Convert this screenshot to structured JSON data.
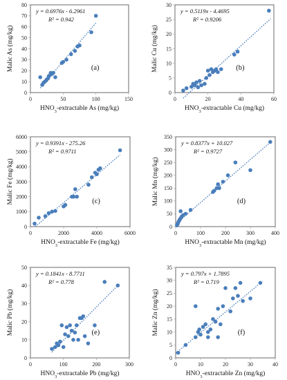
{
  "chart_data": [
    {
      "type": "scatter",
      "panel_label": "(a)",
      "xlabel": "HNO3-extractable As (mg/kg)",
      "ylabel": "Malic As (mg/kg)",
      "element": "As",
      "xlim": [
        0,
        150
      ],
      "ylim": [
        0,
        80
      ],
      "xticks": [
        0,
        50,
        100,
        150
      ],
      "yticks": [
        0,
        10,
        20,
        30,
        40,
        50,
        60,
        70,
        80
      ],
      "equation": "y = 0.6976x - 6.2961",
      "r2": "R² = 0.942",
      "trend": {
        "slope": 0.6976,
        "intercept": -6.2961,
        "x_range": [
          15,
          100
        ]
      },
      "points": [
        [
          15,
          14
        ],
        [
          18,
          7
        ],
        [
          20,
          9
        ],
        [
          22,
          10
        ],
        [
          24,
          11
        ],
        [
          25,
          12
        ],
        [
          27,
          13
        ],
        [
          28,
          15
        ],
        [
          30,
          16
        ],
        [
          31,
          18
        ],
        [
          33,
          17
        ],
        [
          35,
          18
        ],
        [
          38,
          14
        ],
        [
          48,
          27
        ],
        [
          50,
          28
        ],
        [
          55,
          30
        ],
        [
          62,
          35
        ],
        [
          68,
          38
        ],
        [
          72,
          42
        ],
        [
          75,
          43
        ],
        [
          93,
          55
        ],
        [
          100,
          70
        ]
      ]
    },
    {
      "type": "scatter",
      "panel_label": "(b)",
      "xlabel": "HNO3-extractable Cu (mg/kg)",
      "ylabel": "Malic Cu (mg/kg)",
      "element": "Cu",
      "xlim": [
        0,
        60
      ],
      "ylim": [
        0,
        30
      ],
      "xticks": [
        0,
        20,
        40,
        60
      ],
      "yticks": [
        0,
        5,
        10,
        15,
        20,
        25,
        30
      ],
      "equation": "y = 0.5119x - 4.4695",
      "r2": "R² = 0.9206",
      "trend": {
        "slope": 0.5119,
        "intercept": -4.4695,
        "x_range": [
          5,
          58
        ]
      },
      "points": [
        [
          5,
          0.7
        ],
        [
          7,
          1.5
        ],
        [
          10,
          2.0
        ],
        [
          11,
          3.0
        ],
        [
          12,
          2.5
        ],
        [
          13,
          3.5
        ],
        [
          14,
          1.8
        ],
        [
          15,
          4.0
        ],
        [
          16,
          2.5
        ],
        [
          18,
          3.0
        ],
        [
          19,
          5.0
        ],
        [
          20,
          7.5
        ],
        [
          21,
          6.0
        ],
        [
          22,
          8.0
        ],
        [
          23,
          7.0
        ],
        [
          24,
          7.5
        ],
        [
          25,
          8.0
        ],
        [
          26,
          7.0
        ],
        [
          28,
          8.0
        ],
        [
          36,
          13.0
        ],
        [
          38,
          14.0
        ],
        [
          57,
          28.0
        ]
      ]
    },
    {
      "type": "scatter",
      "panel_label": "(c)",
      "xlabel": "HNO3-extractable Fe (mg/kg)",
      "ylabel": "Malic Fe (mg/kg)",
      "element": "Fe",
      "xlim": [
        0,
        6000
      ],
      "ylim": [
        0,
        6000
      ],
      "xticks": [
        0,
        2000,
        4000,
        6000
      ],
      "yticks": [
        0,
        1000,
        2000,
        3000,
        4000,
        5000,
        6000
      ],
      "equation": "y = 0.9391x - 275.26",
      "r2": "R² = 0.9711",
      "trend": {
        "slope": 0.9391,
        "intercept": -275.26,
        "x_range": [
          300,
          5400
        ]
      },
      "points": [
        [
          250,
          200
        ],
        [
          500,
          600
        ],
        [
          900,
          700
        ],
        [
          1100,
          900
        ],
        [
          1300,
          1000
        ],
        [
          1500,
          1050
        ],
        [
          2000,
          1350
        ],
        [
          2100,
          1450
        ],
        [
          2500,
          2000
        ],
        [
          2600,
          2000
        ],
        [
          2700,
          2500
        ],
        [
          2800,
          2000
        ],
        [
          3500,
          2800
        ],
        [
          3700,
          3300
        ],
        [
          3900,
          3600
        ],
        [
          4000,
          3500
        ],
        [
          4100,
          3800
        ],
        [
          4200,
          3900
        ],
        [
          5400,
          5100
        ]
      ]
    },
    {
      "type": "scatter",
      "panel_label": "(d)",
      "xlabel": "HNO3-extractable Mn (mg/kg)",
      "ylabel": "Malic Mn (mg/kg)",
      "element": "Mn",
      "xlim": [
        0,
        400
      ],
      "ylim": [
        0,
        350
      ],
      "xticks": [
        0,
        100,
        200,
        300,
        400
      ],
      "yticks": [
        0,
        50,
        100,
        150,
        200,
        250,
        300,
        350
      ],
      "equation": "y = 0.8377x + 10.027",
      "r2": "R² = 0.9727",
      "trend": {
        "slope": 0.8377,
        "intercept": 10.027,
        "x_range": [
          5,
          385
        ]
      },
      "points": [
        [
          5,
          5
        ],
        [
          8,
          10
        ],
        [
          10,
          15
        ],
        [
          12,
          20
        ],
        [
          15,
          25
        ],
        [
          18,
          30
        ],
        [
          20,
          60
        ],
        [
          22,
          35
        ],
        [
          25,
          40
        ],
        [
          30,
          45
        ],
        [
          40,
          50
        ],
        [
          60,
          65
        ],
        [
          150,
          135
        ],
        [
          155,
          140
        ],
        [
          165,
          150
        ],
        [
          170,
          165
        ],
        [
          175,
          150
        ],
        [
          190,
          175
        ],
        [
          210,
          200
        ],
        [
          240,
          250
        ],
        [
          300,
          220
        ],
        [
          380,
          330
        ]
      ]
    },
    {
      "type": "scatter",
      "panel_label": "(e)",
      "xlabel": "HNO3-extractable Pb (mg/kg)",
      "ylabel": "Malic Pb (mg/kg)",
      "element": "Pb",
      "xlim": [
        0,
        300
      ],
      "ylim": [
        0,
        50
      ],
      "xticks": [
        0,
        100,
        200,
        300
      ],
      "yticks": [
        0,
        10,
        20,
        30,
        40,
        50
      ],
      "equation": "y = 0.1841x - 8.7711",
      "r2": "R² = 0.778",
      "trend": {
        "slope": 0.1841,
        "intercept": -8.7711,
        "x_range": [
          65,
          265
        ]
      },
      "points": [
        [
          65,
          5
        ],
        [
          75,
          6
        ],
        [
          80,
          8
        ],
        [
          85,
          7
        ],
        [
          90,
          9
        ],
        [
          95,
          18
        ],
        [
          100,
          6
        ],
        [
          105,
          13
        ],
        [
          110,
          17
        ],
        [
          115,
          12
        ],
        [
          120,
          18
        ],
        [
          125,
          15
        ],
        [
          130,
          10
        ],
        [
          135,
          14
        ],
        [
          140,
          18
        ],
        [
          145,
          10
        ],
        [
          150,
          22
        ],
        [
          155,
          22
        ],
        [
          160,
          23
        ],
        [
          165,
          12
        ],
        [
          175,
          8
        ],
        [
          195,
          18
        ],
        [
          225,
          42
        ],
        [
          265,
          40
        ]
      ]
    },
    {
      "type": "scatter",
      "panel_label": "(f)",
      "xlabel": "HNO3-extractable Zn (mg/kg)",
      "ylabel": "Malic Zn (mg/kg)",
      "element": "Zn",
      "xlim": [
        0,
        40
      ],
      "ylim": [
        0,
        35
      ],
      "xticks": [
        0,
        10,
        20,
        30,
        40
      ],
      "yticks": [
        0,
        5,
        10,
        15,
        20,
        25,
        30,
        35
      ],
      "equation": "y = 0.797x + 1.7895",
      "r2": "R² = 0.719",
      "trend": {
        "slope": 0.797,
        "intercept": 1.7895,
        "x_range": [
          0,
          35
        ]
      },
      "points": [
        [
          1,
          2
        ],
        [
          4,
          5
        ],
        [
          8,
          8
        ],
        [
          9,
          10
        ],
        [
          9.5,
          11
        ],
        [
          10,
          9
        ],
        [
          11,
          12
        ],
        [
          12,
          13
        ],
        [
          13,
          8
        ],
        [
          13,
          10
        ],
        [
          14,
          11
        ],
        [
          15,
          15
        ],
        [
          16,
          14
        ],
        [
          17,
          8
        ],
        [
          17,
          19
        ],
        [
          18,
          13
        ],
        [
          19,
          20
        ],
        [
          20,
          27
        ],
        [
          22,
          18
        ],
        [
          23,
          23
        ],
        [
          24,
          27
        ],
        [
          25,
          24
        ],
        [
          26,
          29
        ],
        [
          27,
          22
        ],
        [
          30,
          23
        ],
        [
          34,
          29
        ],
        [
          8,
          20
        ]
      ]
    }
  ]
}
